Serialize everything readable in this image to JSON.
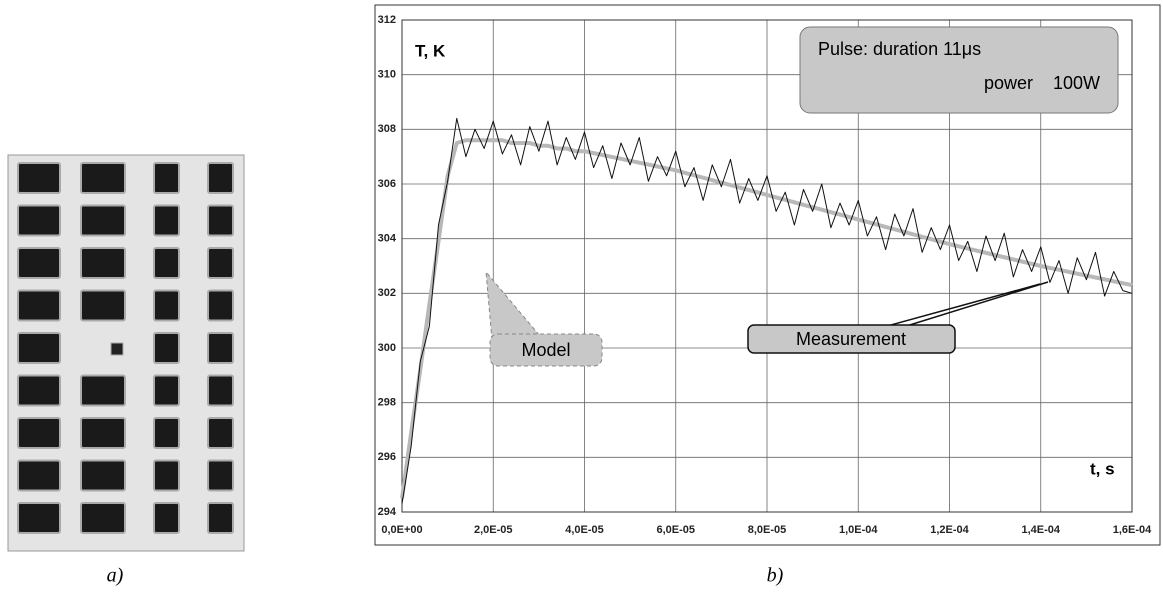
{
  "chart_data": {
    "type": "line",
    "x": [
      0,
      2e-06,
      4e-06,
      6e-06,
      8e-06,
      1e-05,
      1.2e-05,
      1.4e-05,
      1.6e-05,
      1.8e-05,
      2e-05,
      2.2e-05,
      2.4e-05,
      2.6e-05,
      2.8e-05,
      3e-05,
      3.2e-05,
      3.4e-05,
      3.6e-05,
      3.8e-05,
      4e-05,
      4.2e-05,
      4.4e-05,
      4.6e-05,
      4.8e-05,
      5e-05,
      5.2e-05,
      5.4e-05,
      5.6e-05,
      5.8e-05,
      6e-05,
      6.2e-05,
      6.4e-05,
      6.6e-05,
      6.8e-05,
      7e-05,
      7.2e-05,
      7.4e-05,
      7.6e-05,
      7.8e-05,
      8e-05,
      8.2e-05,
      8.4e-05,
      8.6e-05,
      8.8e-05,
      9e-05,
      9.2e-05,
      9.4e-05,
      9.6e-05,
      9.8e-05,
      0.0001,
      0.000102,
      0.000104,
      0.000106,
      0.000108,
      0.00011,
      0.000112,
      0.000114,
      0.000116,
      0.000118,
      0.00012,
      0.000122,
      0.000124,
      0.000126,
      0.000128,
      0.00013,
      0.000132,
      0.000134,
      0.000136,
      0.000138,
      0.00014,
      0.000142,
      0.000144,
      0.000146,
      0.000148,
      0.00015,
      0.000152,
      0.000154,
      0.000156,
      0.000158,
      0.00016
    ],
    "series": [
      {
        "name": "Measurement",
        "color": "#111111",
        "values": [
          294.3,
          296.4,
          299.5,
          300.8,
          304.5,
          306.1,
          308.4,
          307.0,
          308.0,
          307.3,
          308.3,
          307.1,
          307.8,
          306.7,
          308.1,
          307.2,
          308.3,
          306.7,
          307.7,
          306.9,
          307.9,
          306.6,
          307.4,
          306.2,
          307.5,
          306.7,
          307.7,
          306.1,
          307.0,
          306.3,
          307.2,
          305.9,
          306.6,
          305.4,
          306.7,
          305.9,
          306.9,
          305.3,
          306.2,
          305.4,
          306.3,
          305.0,
          305.7,
          304.5,
          305.8,
          305.0,
          306.0,
          304.4,
          305.3,
          304.5,
          305.4,
          304.1,
          304.8,
          303.6,
          304.9,
          304.1,
          305.1,
          303.5,
          304.4,
          303.6,
          304.5,
          303.2,
          303.9,
          302.8,
          304.1,
          303.2,
          304.2,
          302.6,
          303.6,
          302.8,
          303.7,
          302.4,
          303.2,
          302.0,
          303.3,
          302.5,
          303.5,
          301.9,
          302.8,
          302.1,
          302.0
        ]
      },
      {
        "name": "Model",
        "color": "#b8b8b8",
        "values": [
          294.5,
          296.9,
          299.2,
          301.6,
          303.9,
          306.3,
          307.5,
          307.6,
          307.6,
          307.6,
          307.6,
          307.6,
          307.5,
          307.5,
          307.5,
          307.4,
          307.4,
          307.3,
          307.3,
          307.2,
          307.2,
          307.13,
          307.06,
          306.99,
          306.92,
          306.85,
          306.78,
          306.71,
          306.64,
          306.57,
          306.5,
          306.41,
          306.32,
          306.23,
          306.14,
          306.05,
          305.96,
          305.87,
          305.78,
          305.69,
          305.6,
          305.51,
          305.42,
          305.33,
          305.24,
          305.15,
          305.06,
          304.97,
          304.88,
          304.79,
          304.7,
          304.61,
          304.52,
          304.43,
          304.34,
          304.25,
          304.16,
          304.07,
          303.98,
          303.89,
          303.8,
          303.72,
          303.64,
          303.56,
          303.48,
          303.4,
          303.32,
          303.24,
          303.16,
          303.08,
          303.0,
          302.93,
          302.86,
          302.79,
          302.72,
          302.65,
          302.58,
          302.51,
          302.44,
          302.37,
          302.3
        ]
      }
    ],
    "xlim": [
      0,
      0.00016
    ],
    "xticks": [
      {
        "value": 0,
        "label": "0,0E+00"
      },
      {
        "value": 2e-05,
        "label": "2,0E-05"
      },
      {
        "value": 4e-05,
        "label": "4,0E-05"
      },
      {
        "value": 6e-05,
        "label": "6,0E-05"
      },
      {
        "value": 8e-05,
        "label": "8,0E-05"
      },
      {
        "value": 0.0001,
        "label": "1,0E-04"
      },
      {
        "value": 0.00012,
        "label": "1,2E-04"
      },
      {
        "value": 0.00014,
        "label": "1,4E-04"
      },
      {
        "value": 0.00016,
        "label": "1,6E-04"
      }
    ],
    "ylim": [
      294,
      312
    ],
    "yticks": [
      294,
      296,
      298,
      300,
      302,
      304,
      306,
      308,
      310,
      312
    ],
    "grid": true,
    "ylabel": "T, K",
    "xlabel": "t, s",
    "annotation": [
      "Pulse: duration 11μs",
      "power    100W"
    ],
    "captions": [
      "a)",
      "b)"
    ]
  }
}
